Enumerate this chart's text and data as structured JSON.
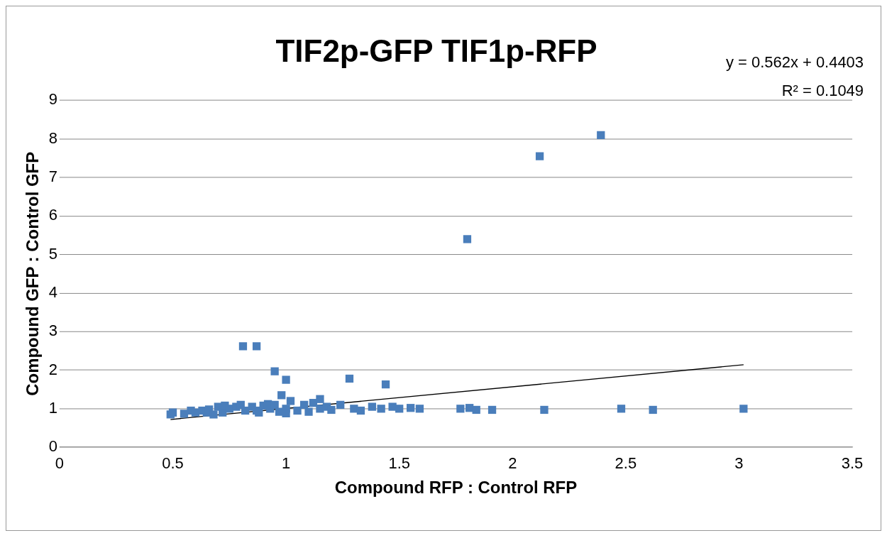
{
  "chart_data": {
    "type": "scatter",
    "title": "TIF2p-GFP TIF1p-RFP",
    "xlabel": "Compound RFP : Control RFP",
    "ylabel": "Compound GFP : Control GFP",
    "annotations": [
      "y = 0.562x + 0.4403",
      "R² = 0.1049"
    ],
    "xlim": [
      0,
      3.5
    ],
    "xticks": [
      0,
      0.5,
      1,
      1.5,
      2,
      2.5,
      3,
      3.5
    ],
    "ylim": [
      0,
      9
    ],
    "yticks": [
      0,
      1,
      2,
      3,
      4,
      5,
      6,
      7,
      8,
      9
    ],
    "grid": "y",
    "legend": false,
    "marker": "square",
    "series": [
      {
        "type": "scatter",
        "color": "#4a7ebb",
        "x": [
          0.49,
          0.5,
          0.55,
          0.58,
          0.6,
          0.63,
          0.65,
          0.66,
          0.68,
          0.7,
          0.72,
          0.73,
          0.75,
          0.78,
          0.8,
          0.81,
          0.82,
          0.85,
          0.87,
          0.87,
          0.88,
          0.9,
          0.92,
          0.93,
          0.95,
          0.95,
          0.97,
          0.98,
          1.0,
          1.0,
          1.0,
          1.02,
          1.05,
          1.08,
          1.1,
          1.12,
          1.15,
          1.15,
          1.18,
          1.2,
          1.24,
          1.28,
          1.3,
          1.33,
          1.38,
          1.42,
          1.44,
          1.47,
          1.5,
          1.55,
          1.59,
          1.77,
          1.8,
          1.81,
          1.84,
          1.91,
          2.12,
          2.14,
          2.39,
          2.48,
          2.62,
          3.02
        ],
        "values": [
          0.85,
          0.9,
          0.87,
          0.95,
          0.9,
          0.95,
          0.9,
          0.98,
          0.85,
          1.05,
          0.9,
          1.08,
          1.0,
          1.05,
          1.1,
          2.62,
          0.95,
          1.05,
          2.62,
          0.95,
          0.9,
          1.08,
          1.12,
          1.0,
          1.1,
          1.97,
          0.92,
          1.35,
          1.0,
          0.88,
          1.75,
          1.2,
          0.95,
          1.1,
          0.92,
          1.15,
          1.25,
          1.0,
          1.05,
          0.97,
          1.1,
          1.78,
          1.0,
          0.95,
          1.05,
          1.0,
          1.63,
          1.05,
          1.0,
          1.02,
          1.0,
          1.0,
          5.4,
          1.02,
          0.97,
          0.97,
          7.55,
          0.97,
          8.1,
          1.0,
          0.97,
          1.0
        ]
      },
      {
        "type": "line",
        "color": "#000000",
        "marker": "none",
        "x": [
          0.49,
          3.02
        ],
        "values": [
          0.72,
          2.14
        ]
      }
    ]
  }
}
